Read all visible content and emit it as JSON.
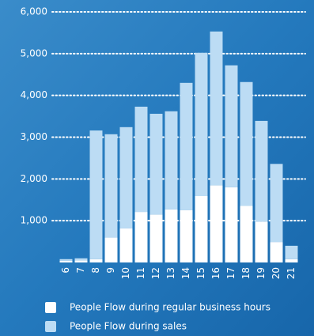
{
  "chart_data": {
    "type": "stacked_bar",
    "categories": [
      "6",
      "7",
      "8",
      "9",
      "10",
      "11",
      "12",
      "13",
      "14",
      "15",
      "16",
      "17",
      "18",
      "19",
      "20",
      "21"
    ],
    "series": [
      {
        "name": "People Flow during regular business hours",
        "color": "#ffffff",
        "values": [
          40,
          50,
          80,
          600,
          820,
          1210,
          1150,
          1270,
          1250,
          1590,
          1850,
          1800,
          1360,
          980,
          490,
          80
        ]
      },
      {
        "name": "People Flow during sales",
        "color": "#bcdcf4",
        "values": [
          40,
          50,
          3080,
          2470,
          2420,
          2520,
          2410,
          2350,
          3050,
          3430,
          3680,
          2920,
          2960,
          2410,
          1870,
          320
        ]
      }
    ],
    "ylim": [
      0,
      6000
    ],
    "yticks": [
      {
        "value": 1000,
        "label": "1,000"
      },
      {
        "value": 2000,
        "label": "2,000"
      },
      {
        "value": 3000,
        "label": "3,000"
      },
      {
        "value": 4000,
        "label": "4,000"
      },
      {
        "value": 5000,
        "label": "5,000"
      },
      {
        "value": 6000,
        "label": "6,000"
      }
    ],
    "grid": true
  }
}
